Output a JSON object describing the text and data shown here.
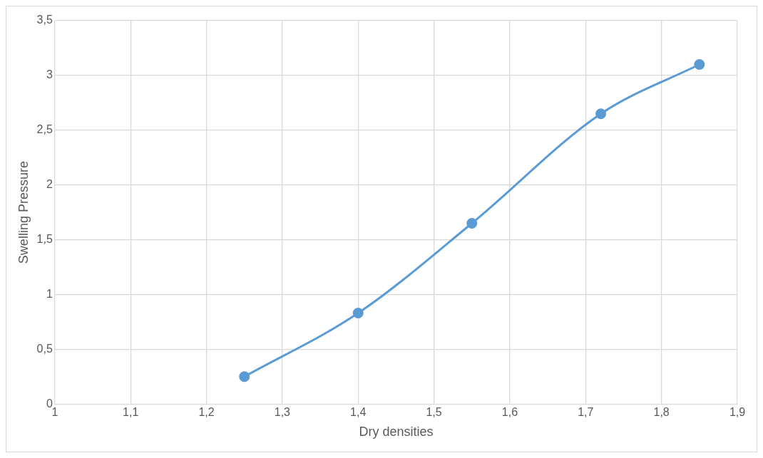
{
  "chart_data": {
    "type": "line",
    "xlabel": "Dry densities",
    "ylabel": "Swelling Pressure",
    "x": [
      1.25,
      1.4,
      1.55,
      1.72,
      1.85
    ],
    "series": [
      {
        "color": "#5b9bd5",
        "values": [
          0.25,
          0.83,
          1.65,
          2.65,
          3.1
        ]
      }
    ],
    "xlim": [
      1,
      1.9
    ],
    "xticks": [
      1,
      {
        "value": 1.1,
        "label": "1,1"
      },
      {
        "value": 1.2,
        "label": "1,2"
      },
      {
        "value": 1.3,
        "label": "1,3"
      },
      {
        "value": 1.4,
        "label": "1,4"
      },
      {
        "value": 1.5,
        "label": "1,5"
      },
      {
        "value": 1.6,
        "label": "1,6"
      },
      {
        "value": 1.7,
        "label": "1,7"
      },
      {
        "value": 1.8,
        "label": "1,8"
      },
      {
        "value": 1.9,
        "label": "1,9"
      }
    ],
    "ylim": [
      0,
      3.5
    ],
    "yticks": [
      0,
      {
        "value": 0.5,
        "label": "0,5"
      },
      1,
      {
        "value": 1.5,
        "label": "1,5"
      },
      2,
      {
        "value": 2.5,
        "label": "2,5"
      },
      3,
      {
        "value": 3.5,
        "label": "3,5"
      }
    ],
    "grid": true,
    "marker": "circle",
    "line_style": "solid",
    "legend": false
  }
}
